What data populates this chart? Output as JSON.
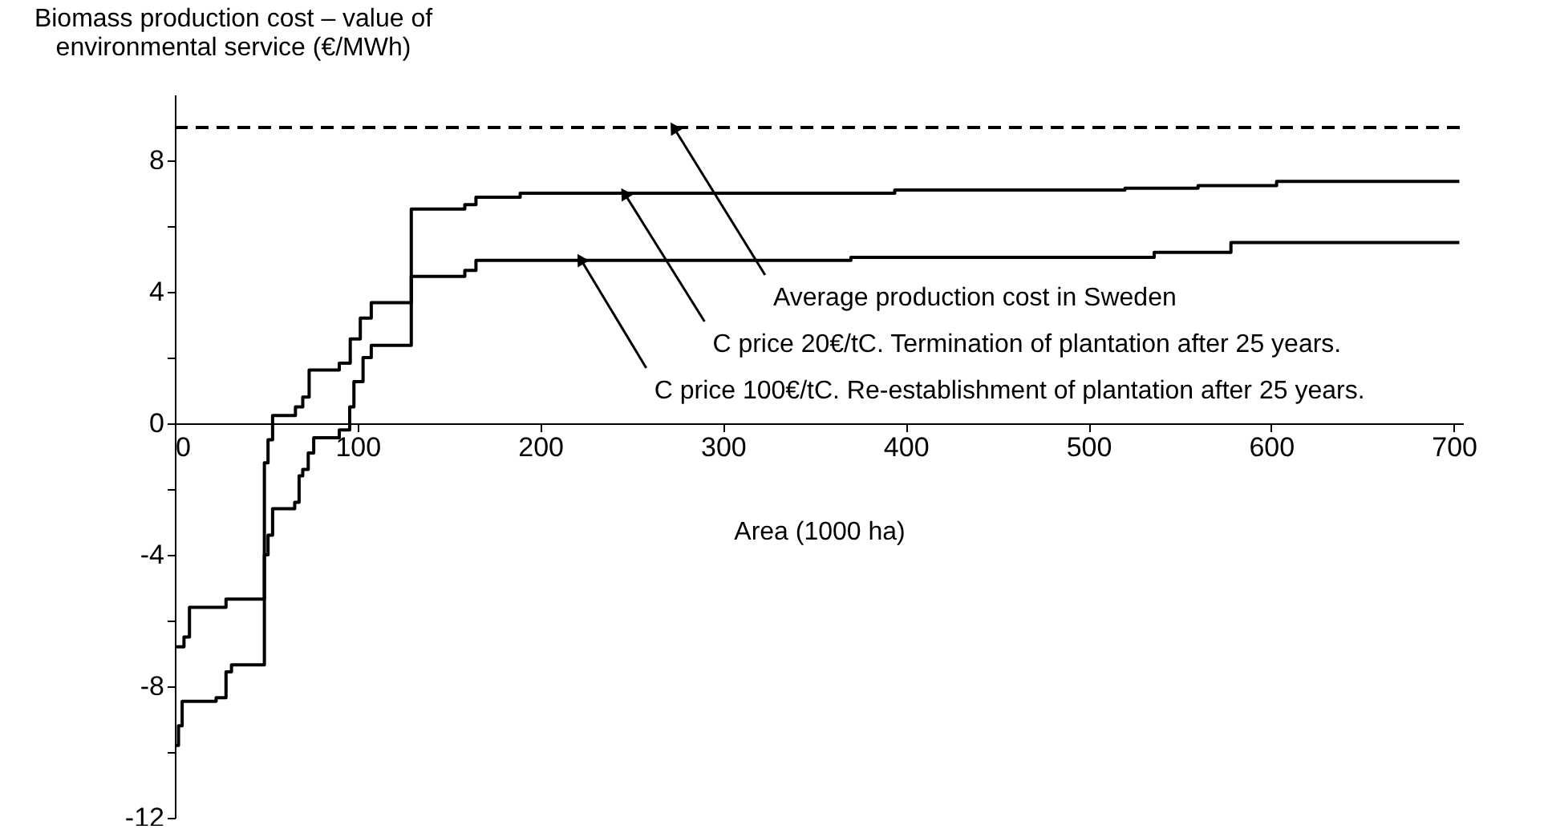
{
  "chart_data": {
    "type": "step",
    "ylabel": "Biomass production cost – value of environmental service (€/MWh)",
    "xlabel": "Area (1000 ha)",
    "xlim": [
      0,
      705
    ],
    "xticks": [
      0,
      100,
      200,
      300,
      400,
      500,
      600,
      700
    ],
    "ylim": [
      -12,
      10
    ],
    "yticks": [
      -12,
      {
        "value": -10,
        "label": null
      },
      -8,
      {
        "value": -6,
        "label": null
      },
      -4,
      {
        "value": -2,
        "label": null
      },
      0,
      {
        "value": 2,
        "label": null
      },
      4,
      {
        "value": 6,
        "label": null
      },
      8
    ],
    "grid": false,
    "line_style": "solid",
    "marker": "none",
    "series": [
      {
        "color": "#000000",
        "x": [
          0,
          5,
          8,
          28,
          49,
          51,
          53.5,
          66,
          70,
          73.5,
          90,
          96,
          101.5,
          107.5,
          129.4,
          158.7,
          164.8,
          189,
          394,
          520,
          560,
          603,
          703
        ],
        "values": [
          -6.8,
          -6.5,
          -5.6,
          -5.35,
          -1.2,
          -0.5,
          0.24,
          0.5,
          0.8,
          1.62,
          1.83,
          2.57,
          3.2,
          3.67,
          6.52,
          6.65,
          6.88,
          7.0,
          7.1,
          7.15,
          7.23,
          7.36,
          7.36
        ]
      },
      {
        "color": "#000000",
        "x": [
          0,
          2,
          4,
          22.6,
          28,
          31,
          49,
          51,
          53.5,
          65.6,
          68,
          70,
          73,
          76,
          90,
          95.7,
          98,
          103,
          107.5,
          129.4,
          158.7,
          164.8,
          370,
          536,
          578,
          703
        ],
        "values": [
          -9.8,
          -9.2,
          -8.46,
          -8.35,
          -7.56,
          -7.35,
          -4.0,
          -3.4,
          -2.6,
          -2.4,
          -1.6,
          -1.4,
          -0.9,
          -0.44,
          -0.2,
          0.5,
          1.27,
          2.0,
          2.37,
          4.47,
          4.65,
          4.96,
          5.05,
          5.2,
          5.5,
          5.5
        ]
      }
    ],
    "ref_lines": [
      {
        "axis": "y",
        "value": 9,
        "color": "#000000",
        "line_style": "dashed"
      }
    ],
    "annotations": [
      {
        "text": "Average production cost in Sweden",
        "x": 273,
        "y": 9
      },
      {
        "text": "C price 20€/tC. Termination of plantation after 25 years.",
        "x": 246,
        "y": 7.0
      },
      {
        "text": "C price 100€/tC. Re-establishment of plantation after 25 years.",
        "x": 222,
        "y": 5.0
      }
    ]
  }
}
